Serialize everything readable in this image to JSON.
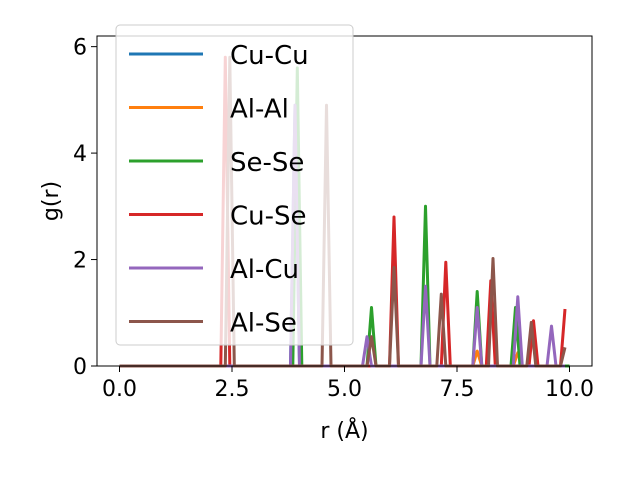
{
  "chart_data": {
    "type": "line",
    "title": "",
    "xlabel": "r (Å)",
    "ylabel": "g(r)",
    "xlim": [
      -0.5,
      10.5
    ],
    "ylim": [
      0,
      6.2
    ],
    "xticks": [
      0.0,
      2.5,
      5.0,
      7.5,
      10.0
    ],
    "xtick_labels": [
      "0.0",
      "2.5",
      "5.0",
      "7.5",
      "10.0"
    ],
    "yticks": [
      0,
      2,
      4,
      6
    ],
    "ytick_labels": [
      "0",
      "2",
      "4",
      "6"
    ],
    "grid": false,
    "legend_position": "top-left",
    "series": [
      {
        "name": "Cu-Cu",
        "color": "#1f77b4",
        "x": [
          0.0,
          3.8,
          3.9,
          4.0,
          10.0
        ],
        "y": [
          0,
          0,
          4.9,
          0,
          0
        ]
      },
      {
        "name": "Al-Al",
        "color": "#ff7f0e",
        "x": [
          0.0,
          7.85,
          7.95,
          8.05,
          8.75,
          8.85,
          8.95,
          10.0
        ],
        "y": [
          0,
          0,
          0.28,
          0,
          0,
          0.25,
          0,
          0
        ]
      },
      {
        "name": "Se-Se",
        "color": "#2ca02c",
        "x": [
          0.0,
          3.85,
          3.95,
          4.05,
          5.5,
          5.6,
          5.7,
          6.7,
          6.8,
          6.9,
          7.85,
          7.95,
          8.05,
          8.7,
          8.8,
          8.9,
          10.0
        ],
        "y": [
          0,
          0,
          5.6,
          0,
          0,
          1.1,
          0,
          0,
          3.0,
          0,
          0,
          1.4,
          0,
          0,
          1.1,
          0,
          0
        ]
      },
      {
        "name": "Cu-Se",
        "color": "#d62728",
        "x": [
          0.0,
          2.25,
          2.35,
          2.45,
          6.0,
          6.1,
          6.2,
          7.15,
          7.25,
          7.35,
          8.15,
          8.25,
          8.35,
          9.1,
          9.2,
          9.3,
          9.8,
          9.9
        ],
        "y": [
          0,
          0,
          5.8,
          0,
          0,
          2.8,
          0,
          0,
          1.95,
          0,
          0,
          1.6,
          0,
          0,
          0.85,
          0,
          0,
          1.07
        ]
      },
      {
        "name": "Al-Cu",
        "color": "#9467bd",
        "x": [
          0.0,
          3.8,
          3.9,
          4.0,
          5.4,
          5.5,
          5.6,
          6.7,
          6.8,
          6.9,
          7.85,
          7.95,
          8.05,
          8.75,
          8.85,
          8.95,
          9.5,
          9.6,
          9.7,
          9.9
        ],
        "y": [
          0,
          0,
          4.9,
          0,
          0,
          0.55,
          0,
          0,
          1.5,
          0,
          0,
          1.1,
          0,
          0,
          1.3,
          0,
          0,
          0.75,
          0,
          0
        ]
      },
      {
        "name": "Al-Se",
        "color": "#8c564b",
        "x": [
          0.0,
          2.35,
          2.45,
          2.55,
          4.5,
          4.6,
          4.7,
          5.5,
          5.6,
          5.7,
          6.0,
          6.1,
          6.2,
          7.05,
          7.15,
          7.25,
          8.2,
          8.3,
          8.4,
          9.05,
          9.15,
          9.25,
          9.8,
          9.9
        ],
        "y": [
          0,
          0,
          5.8,
          0,
          0,
          4.9,
          0,
          0,
          0.55,
          0,
          0,
          1.85,
          0,
          0,
          1.35,
          0,
          0,
          2.02,
          0,
          0,
          0.82,
          0,
          0,
          0.35
        ]
      }
    ]
  }
}
